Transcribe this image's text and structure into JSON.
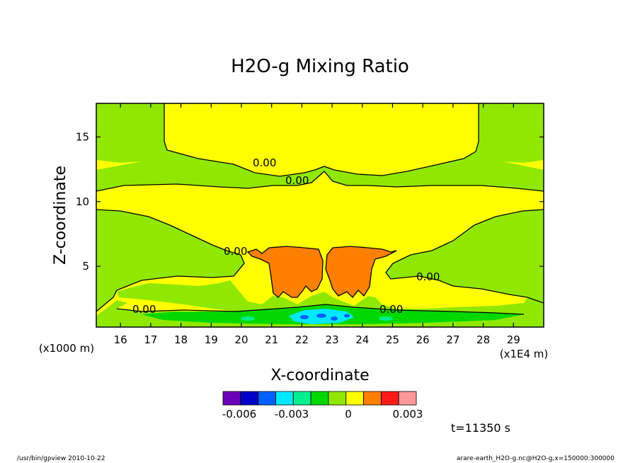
{
  "chart_data": {
    "type": "heatmap",
    "title": "H2O-g Mixing Ratio",
    "xlabel": "X-coordinate",
    "ylabel": "Z-coordinate",
    "x_unit": "(x1E4 m)",
    "y_unit": "(x1000 m)",
    "xlim": [
      15.2,
      30.0
    ],
    "ylim": [
      0.3,
      17.6
    ],
    "xticks": [
      "16",
      "17",
      "18",
      "19",
      "20",
      "21",
      "22",
      "23",
      "24",
      "25",
      "26",
      "27",
      "28",
      "29"
    ],
    "yticks": [
      "5",
      "10",
      "15"
    ],
    "contour_labels": [
      "0.00",
      "0.00",
      "0.00",
      "0.00",
      "0.00",
      "0.00"
    ],
    "colorbar": {
      "colors": [
        "#6a00b8",
        "#0000c8",
        "#0060ff",
        "#00e8ff",
        "#00f090",
        "#00d800",
        "#90e800",
        "#ffff00",
        "#ff8000",
        "#ff1a1a",
        "#ff9898"
      ],
      "tick_labels": [
        "-0.006",
        "-0.003",
        "0",
        "0.003"
      ]
    },
    "time_label": "t=11350 s"
  },
  "footer": {
    "left": "/usr/bin/gpview  2010-10-22",
    "right": "arare-earth_H2O-g.nc@H2O-g,x=150000:300000"
  }
}
